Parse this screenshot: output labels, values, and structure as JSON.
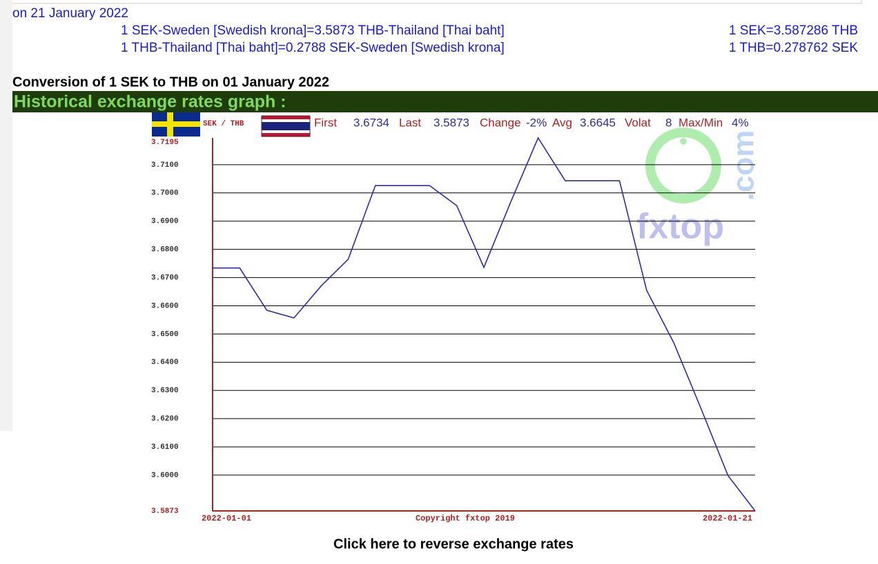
{
  "date_line": "on 21 January 2022",
  "rates": [
    [
      "1 SEK-Sweden [Swedish krona]=3.5873 THB-Thailand [Thai baht]",
      "1 SEK=3.587286 THB"
    ],
    [
      "1 THB-Thailand [Thai baht]=0.2788 SEK-Sweden [Swedish krona]",
      "1 THB=0.278762 SEK"
    ]
  ],
  "conversion_title": "Conversion of 1 SEK to THB on 01 January 2022",
  "graph_header": "Historical exchange rates graph :",
  "chart_data": {
    "type": "line",
    "pair_label": "SEK / THB",
    "stats": [
      {
        "label": "First",
        "value": 3.6734
      },
      {
        "label": "Last",
        "value": 3.5873
      },
      {
        "label": "Change",
        "value": "-2%"
      },
      {
        "label": "Avg",
        "value": 3.6645
      },
      {
        "label": "Volat",
        "value": 8
      },
      {
        "label": "Max/Min",
        "value": "4%"
      }
    ],
    "categories": [
      "2022-01-01",
      null,
      null,
      null,
      null,
      null,
      null,
      null,
      null,
      null,
      null,
      null,
      null,
      null,
      null,
      null,
      null,
      null,
      null,
      null,
      "2022-01-21"
    ],
    "values": [
      3.6734,
      3.6734,
      3.6584,
      3.6557,
      3.667,
      3.6765,
      3.7026,
      3.7026,
      3.7026,
      3.6955,
      3.6736,
      3.697,
      3.7195,
      3.7043,
      3.7043,
      3.7043,
      3.6655,
      3.6469,
      3.6237,
      3.5998,
      3.5873
    ],
    "color": "#2c2ca0",
    "ylim": [
      3.5873,
      3.7195
    ],
    "yticks": [
      3.7195,
      {
        "value": 3.71,
        "label": "3.7100"
      },
      {
        "value": 3.7,
        "label": "3.7000"
      },
      {
        "value": 3.69,
        "label": "3.6900"
      },
      {
        "value": 3.68,
        "label": "3.6800"
      },
      {
        "value": 3.67,
        "label": "3.6700"
      },
      {
        "value": 3.66,
        "label": "3.6600"
      },
      {
        "value": 3.65,
        "label": "3.6500"
      },
      {
        "value": 3.64,
        "label": "3.6400"
      },
      {
        "value": 3.63,
        "label": "3.6300"
      },
      {
        "value": 3.62,
        "label": "3.6200"
      },
      {
        "value": 3.61,
        "label": "3.6100"
      },
      {
        "value": 3.6,
        "label": "3.6000"
      },
      3.5873
    ],
    "grid": true,
    "copyright": "Copyright fxtop 2019"
  },
  "watermark": {
    "name": "fxtop",
    "suffix": ".com"
  },
  "reverse_link": "Click here to reverse exchange rates"
}
